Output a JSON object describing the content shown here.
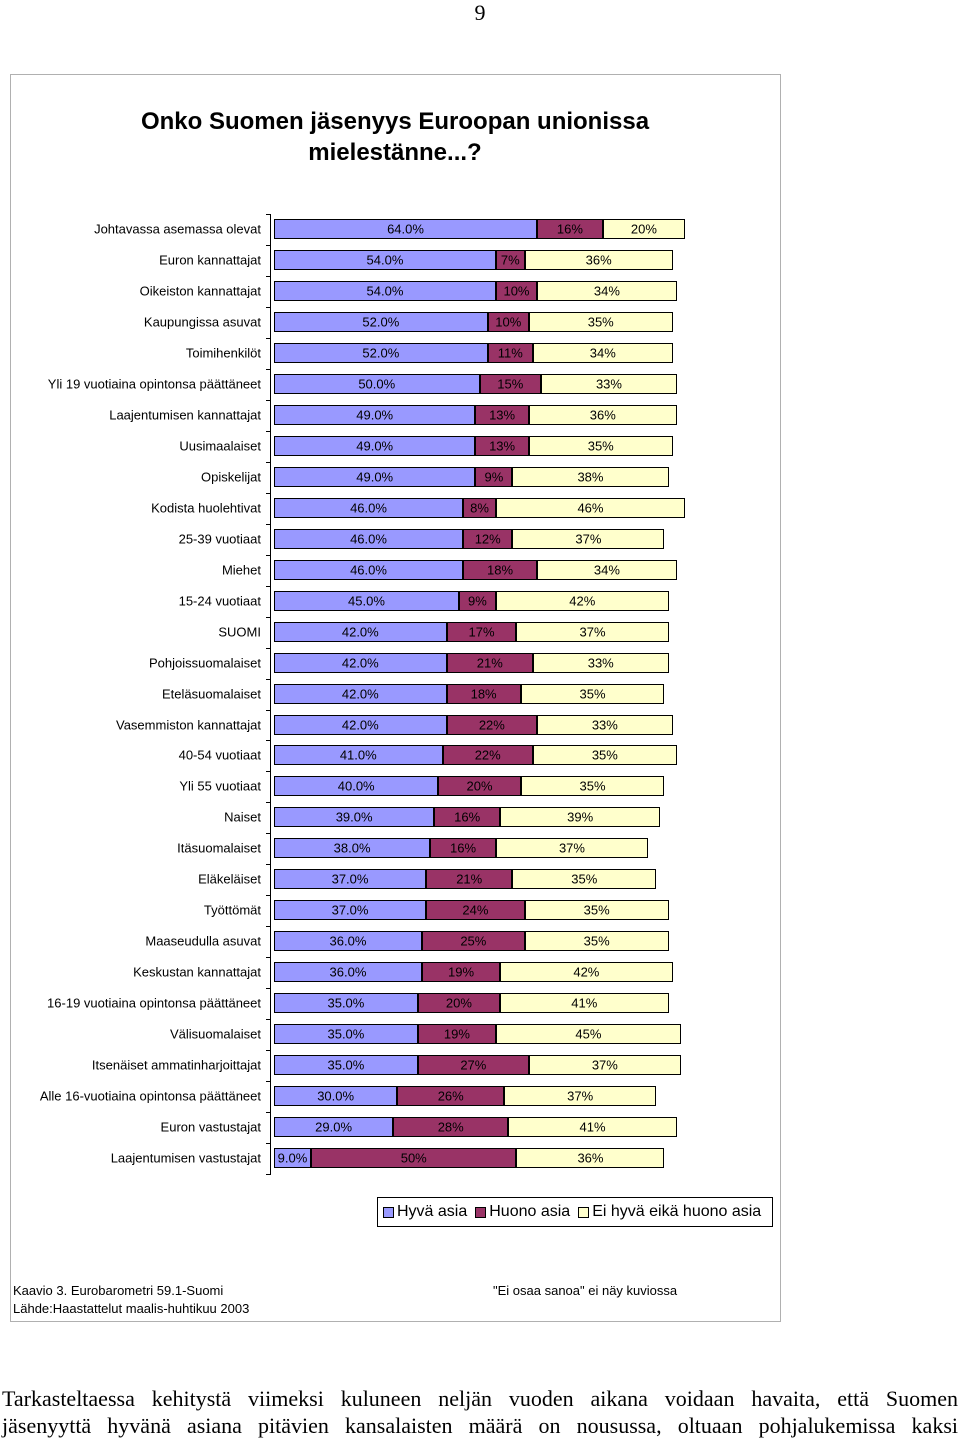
{
  "page_number": "9",
  "chart_data": {
    "type": "bar",
    "orientation": "horizontal",
    "stacked": true,
    "title": "Onko Suomen jäsenyys Euroopan unionissa mielestänne...?",
    "categories": [
      "Johtavassa asemassa olevat",
      "Euron kannattajat",
      "Oikeiston kannattajat",
      "Kaupungissa asuvat",
      "Toimihenkilöt",
      "Yli 19 vuotiaina opintonsa päättäneet",
      "Laajentumisen kannattajat",
      "Uusimaalaiset",
      "Opiskelijat",
      "Kodista huolehtivat",
      "25-39 vuotiaat",
      "Miehet",
      "15-24 vuotiaat",
      "SUOMI",
      "Pohjoissuomalaiset",
      "Eteläsuomalaiset",
      "Vasemmiston kannattajat",
      "40-54 vuotiaat",
      "Yli 55 vuotiaat",
      "Naiset",
      "Itäsuomalaiset",
      "Eläkeläiset",
      "Työttömät",
      "Maaseudulla asuvat",
      "Keskustan kannattajat",
      "16-19 vuotiaina opintonsa päättäneet",
      "Välisuomalaiset",
      "Itsenäiset ammatinharjoittajat",
      "Alle 16-vuotiaina opintonsa päättäneet",
      "Euron vastustajat",
      "Laajentumisen vastustajat"
    ],
    "series": [
      {
        "name": "Hyvä asia",
        "color": "#9999ff",
        "values": [
          64,
          54,
          54,
          52,
          52,
          50,
          49,
          49,
          49,
          46,
          46,
          46,
          45,
          42,
          42,
          42,
          42,
          41,
          40,
          39,
          38,
          37,
          37,
          36,
          36,
          35,
          35,
          35,
          30,
          29,
          9
        ],
        "value_labels": [
          "64.0%",
          "54.0%",
          "54.0%",
          "52.0%",
          "52.0%",
          "50.0%",
          "49.0%",
          "49.0%",
          "49.0%",
          "46.0%",
          "46.0%",
          "46.0%",
          "45.0%",
          "42.0%",
          "42.0%",
          "42.0%",
          "42.0%",
          "41.0%",
          "40.0%",
          "39.0%",
          "38.0%",
          "37.0%",
          "37.0%",
          "36.0%",
          "36.0%",
          "35.0%",
          "35.0%",
          "35.0%",
          "30.0%",
          "29.0%",
          "9.0%"
        ]
      },
      {
        "name": "Huono asia",
        "color": "#993366",
        "values": [
          16,
          7,
          10,
          10,
          11,
          15,
          13,
          13,
          9,
          8,
          12,
          18,
          9,
          17,
          21,
          18,
          22,
          22,
          20,
          16,
          16,
          21,
          24,
          25,
          19,
          20,
          19,
          27,
          26,
          28,
          50
        ],
        "value_labels": [
          "16%",
          "7%",
          "10%",
          "10%",
          "11%",
          "15%",
          "13%",
          "13%",
          "9%",
          "8%",
          "12%",
          "18%",
          "9%",
          "17%",
          "21%",
          "18%",
          "22%",
          "22%",
          "20%",
          "16%",
          "16%",
          "21%",
          "24%",
          "25%",
          "19%",
          "20%",
          "19%",
          "27%",
          "26%",
          "28%",
          "50%"
        ]
      },
      {
        "name": "Ei hyvä eikä huono asia",
        "color": "#ffffcc",
        "values": [
          20,
          36,
          34,
          35,
          34,
          33,
          36,
          35,
          38,
          46,
          37,
          34,
          42,
          37,
          33,
          35,
          33,
          35,
          35,
          39,
          37,
          35,
          35,
          35,
          42,
          41,
          45,
          37,
          37,
          41,
          36
        ],
        "value_labels": [
          "20%",
          "36%",
          "34%",
          "35%",
          "34%",
          "33%",
          "36%",
          "35%",
          "38%",
          "46%",
          "37%",
          "34%",
          "42%",
          "37%",
          "33%",
          "35%",
          "33%",
          "35%",
          "35%",
          "39%",
          "37%",
          "35%",
          "35%",
          "35%",
          "42%",
          "41%",
          "45%",
          "37%",
          "37%",
          "41%",
          "36%"
        ]
      }
    ],
    "legend": "bottom"
  },
  "notes": {
    "left": [
      "Kaavio 3. Eurobarometri 59.1-Suomi",
      "Lähde:Haastattelut maalis-huhtikuu 2003"
    ],
    "right": "\"Ei osaa sanoa\" ei näy kuviossa"
  },
  "body_text": [
    "Tarkasteltaessa kehitystä viimeksi kuluneen neljän vuoden aikana voidaan havaita, että Suomen",
    "jäsenyyttä hyvänä asiana pitävien kansalaisten määrä on nousussa, oltuaan pohjalukemissa kaksi"
  ]
}
